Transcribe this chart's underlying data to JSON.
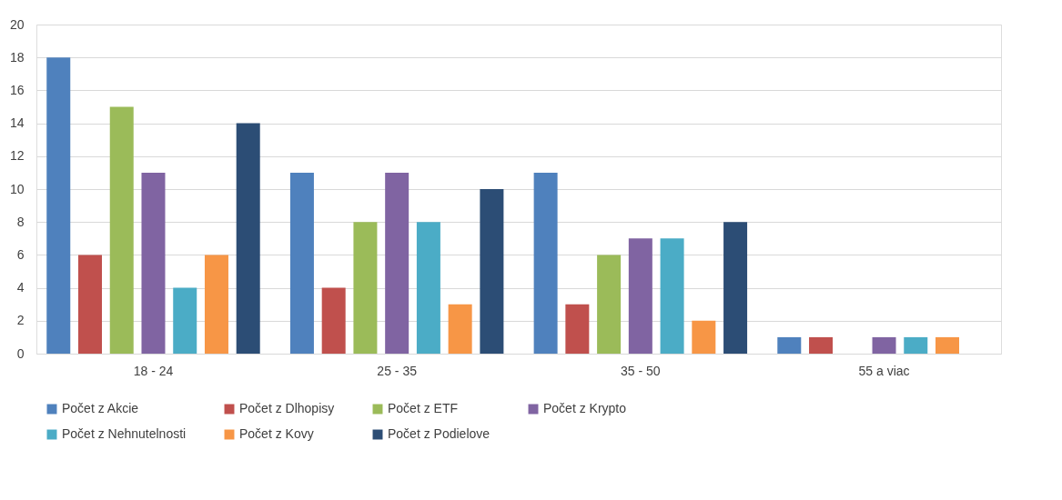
{
  "chart_data": {
    "type": "bar",
    "categories": [
      "18 - 24",
      "25 - 35",
      "35 - 50",
      "55 a viac"
    ],
    "series": [
      {
        "name": "Počet z Akcie",
        "color": "#4f81bd",
        "values": [
          18,
          11,
          11,
          1
        ]
      },
      {
        "name": "Počet z Dlhopisy",
        "color": "#c0504d",
        "values": [
          6,
          4,
          3,
          1
        ]
      },
      {
        "name": "Počet z ETF",
        "color": "#9bbb59",
        "values": [
          15,
          8,
          6,
          null
        ]
      },
      {
        "name": "Počet z Krypto",
        "color": "#8064a2",
        "values": [
          11,
          11,
          7,
          1
        ]
      },
      {
        "name": "Počet z Nehnutelnosti",
        "color": "#4bacc6",
        "values": [
          4,
          8,
          7,
          1
        ]
      },
      {
        "name": "Počet z Kovy",
        "color": "#f79646",
        "values": [
          6,
          3,
          2,
          1
        ]
      },
      {
        "name": "Počet z Podielove",
        "color": "#2c4d75",
        "values": [
          14,
          10,
          8,
          null
        ]
      }
    ],
    "ylim": [
      0,
      20
    ],
    "yticks": [
      0,
      2,
      4,
      6,
      8,
      10,
      12,
      14,
      16,
      18,
      20
    ],
    "grid": "y",
    "legend": "bottom"
  }
}
